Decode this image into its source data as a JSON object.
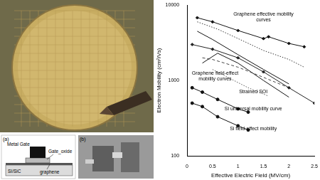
{
  "chart_data": {
    "type": "line",
    "x_label": "Effective Electric Field (MV/cm)",
    "y_label": "Electron Mobility (cm²/Vs)",
    "log": "y",
    "grid": false,
    "xlim": [
      0,
      2.5
    ],
    "xticks": [
      0,
      0.5,
      1,
      1.5,
      2,
      2.5
    ],
    "ylim": [
      100,
      10000
    ],
    "yticks": [
      100,
      1000,
      10000
    ],
    "series": [
      {
        "color": "#111111",
        "x": [
          0.2,
          0.5,
          1.0,
          1.5,
          1.6,
          2.0,
          2.3
        ],
        "values": [
          6800,
          6000,
          4600,
          3600,
          3800,
          3100,
          2800
        ],
        "marker": "diamond",
        "line_style": "solid"
      },
      {
        "color": "#333333",
        "x": [
          0.2,
          0.6,
          1.0,
          1.5,
          2.0,
          2.3
        ],
        "values": [
          6000,
          4800,
          3600,
          2500,
          1900,
          1500
        ],
        "line_style": "dotted"
      },
      {
        "color": "#111111",
        "x": [
          0.2,
          0.5,
          1.0,
          1.5,
          2.0
        ],
        "values": [
          4500,
          3500,
          2200,
          1400,
          900
        ],
        "line_style": "solid"
      },
      {
        "color": "#222222",
        "x": [
          0.1,
          0.5,
          1.0,
          1.5,
          2.0,
          2.5
        ],
        "values": [
          3000,
          2600,
          2000,
          1300,
          800,
          500
        ],
        "marker": "diamond",
        "line_style": "solid"
      },
      {
        "color": "#444444",
        "x": [
          0.3,
          0.5,
          1.0,
          1.5,
          2.0
        ],
        "values": [
          2000,
          1900,
          1500,
          1100,
          800
        ],
        "line_style": "dashed"
      },
      {
        "color": "#111111",
        "x": [
          0.3,
          0.6,
          1.0,
          1.5,
          2.0
        ],
        "values": [
          1700,
          2300,
          1700,
          1000,
          600
        ],
        "line_style": "solid"
      },
      {
        "color": "#555555",
        "x": [
          0.5,
          0.8,
          1.2,
          1.6
        ],
        "values": [
          1400,
          1100,
          800,
          620
        ],
        "line_style": "dotted"
      },
      {
        "color": "#111111",
        "x": [
          0.1,
          0.3,
          0.6,
          1.0,
          1.2
        ],
        "values": [
          800,
          700,
          560,
          420,
          380
        ],
        "marker": "circle",
        "line_style": "solid"
      },
      {
        "color": "#111111",
        "x": [
          0.1,
          0.3,
          0.6,
          1.0,
          1.2
        ],
        "values": [
          500,
          450,
          330,
          250,
          220
        ],
        "marker": "circle",
        "line_style": "solid"
      }
    ],
    "annotations": [
      {
        "text": [
          "Graphene effective mobility",
          "curves"
        ],
        "x": 1.5,
        "y": 7000
      },
      {
        "text": [
          "Graphene field-effect",
          "mobility curves"
        ],
        "x": 0.55,
        "y": 1150
      },
      {
        "text": [
          "Strained SOI"
        ],
        "x": 1.3,
        "y": 700
      },
      {
        "text": [
          "Si universal mobility curve"
        ],
        "x": 1.3,
        "y": 420
      },
      {
        "text": [
          "Si field-effect mobility"
        ],
        "x": 1.3,
        "y": 230
      }
    ]
  },
  "figure": {
    "panel_a": {
      "label": "(a)",
      "layers": [
        "Metal Gate",
        "Gate_oxide",
        "graphene",
        "SI/SiC"
      ]
    },
    "panel_b": {
      "label": "(b)"
    }
  }
}
